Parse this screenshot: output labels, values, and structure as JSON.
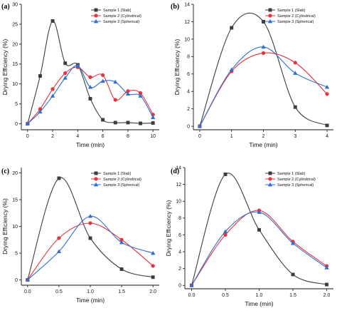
{
  "chart_data": [
    {
      "type": "line",
      "panel_label": "(a)",
      "xlabel": "Time (min)",
      "ylabel": "Drying Efficiency (%)",
      "xlim": [
        -0.5,
        10.5
      ],
      "ylim": [
        -1.5,
        30
      ],
      "xticks": [
        0,
        2,
        4,
        6,
        8,
        10
      ],
      "yticks": [
        0,
        5,
        10,
        15,
        20,
        25,
        30
      ],
      "legend_position": "top-right",
      "series": [
        {
          "name": "Sample 1 (Slab)",
          "color": "#3c3c3c",
          "marker": "square",
          "x": [
            0,
            1,
            2,
            3,
            4,
            5,
            6,
            7,
            8,
            9,
            10
          ],
          "y": [
            0,
            12,
            25.8,
            15.2,
            14.8,
            6.3,
            1,
            0.3,
            0.3,
            0.1,
            0.2
          ]
        },
        {
          "name": "Sample 2 (Cylindrical)",
          "color": "#e8323c",
          "marker": "circle",
          "x": [
            0,
            1,
            2,
            3,
            4,
            5,
            6,
            7,
            8,
            9,
            10
          ],
          "y": [
            0,
            3.7,
            8.7,
            12.7,
            14.2,
            11.7,
            12.2,
            6,
            8.2,
            7.7,
            2.3
          ]
        },
        {
          "name": "Sample 3 (Spherical)",
          "color": "#2e6fd1",
          "marker": "triangle",
          "x": [
            0,
            1,
            2,
            3,
            4,
            5,
            6,
            7,
            8,
            9,
            10
          ],
          "y": [
            0,
            3,
            7,
            11.5,
            14.6,
            9.2,
            10.7,
            10.5,
            7.5,
            7,
            1.6
          ]
        }
      ]
    },
    {
      "type": "line",
      "panel_label": "(b)",
      "xlabel": "Time (min)",
      "ylabel": "Drying Efficiency (%)",
      "xlim": [
        -0.2,
        4.2
      ],
      "ylim": [
        -0.4,
        14
      ],
      "xticks": [
        0,
        1,
        2,
        3,
        4
      ],
      "yticks": [
        0,
        2,
        4,
        6,
        8,
        10,
        12,
        14
      ],
      "legend_position": "top-right",
      "series": [
        {
          "name": "Sample 1 (Slab)",
          "color": "#3c3c3c",
          "marker": "square",
          "x": [
            0,
            1,
            2,
            3,
            4
          ],
          "y": [
            0,
            11.3,
            12,
            2.2,
            0.1
          ]
        },
        {
          "name": "Sample 2 (Cylindrical)",
          "color": "#e8323c",
          "marker": "circle",
          "x": [
            0,
            1,
            2,
            3,
            4
          ],
          "y": [
            0,
            6.3,
            8.4,
            7.3,
            3.7
          ]
        },
        {
          "name": "Sample 3 (Spherical)",
          "color": "#2e6fd1",
          "marker": "triangle",
          "x": [
            0,
            1,
            2,
            3,
            4
          ],
          "y": [
            0,
            6.5,
            9.1,
            6.1,
            4.5
          ]
        }
      ]
    },
    {
      "type": "line",
      "panel_label": "(c)",
      "xlabel": "Time (min)",
      "ylabel": "Drying Efficiency (%)",
      "xlim": [
        -0.1,
        2.1
      ],
      "ylim": [
        -1,
        21
      ],
      "xticks": [
        0.0,
        0.5,
        1.0,
        1.5,
        2.0
      ],
      "xtick_labels": [
        "0.0",
        "0.5",
        "1.0",
        "1.5",
        "2.0"
      ],
      "yticks": [
        0,
        5,
        10,
        15,
        20
      ],
      "legend_position": "top-right",
      "series": [
        {
          "name": "Sample 1 (Slab)",
          "color": "#3c3c3c",
          "marker": "square",
          "x": [
            0,
            0.5,
            1.0,
            1.5,
            2.0
          ],
          "y": [
            0,
            19,
            7.8,
            2,
            0.5
          ]
        },
        {
          "name": "Sample 2 (Cylindrical)",
          "color": "#e8323c",
          "marker": "circle",
          "x": [
            0,
            0.5,
            1.0,
            1.5,
            2.0
          ],
          "y": [
            0,
            7.8,
            10.6,
            7.5,
            2.6
          ]
        },
        {
          "name": "Sample 3 (Spherical)",
          "color": "#2e6fd1",
          "marker": "triangle",
          "x": [
            0,
            0.5,
            1.0,
            1.5,
            2.0
          ],
          "y": [
            0,
            5.3,
            11.9,
            7,
            5
          ]
        }
      ]
    },
    {
      "type": "line",
      "panel_label": "(d)",
      "xlabel": "Time (min)",
      "ylabel": "Drying Efficiency (%)",
      "xlim": [
        -0.1,
        2.1
      ],
      "ylim": [
        -0.4,
        14
      ],
      "xticks": [
        0.0,
        0.5,
        1.0,
        1.5,
        2.0
      ],
      "xtick_labels": [
        "0.0",
        "0.5",
        "1.0",
        "1.5",
        "2.0"
      ],
      "yticks": [
        0,
        2,
        4,
        6,
        8,
        10,
        12,
        14
      ],
      "legend_position": "top-right",
      "series": [
        {
          "name": "Sample 1 (Slab)",
          "color": "#3c3c3c",
          "marker": "square",
          "x": [
            0,
            0.5,
            1.0,
            1.5,
            2.0
          ],
          "y": [
            0,
            13.2,
            6.6,
            1.3,
            0.1
          ]
        },
        {
          "name": "Sample 2 (Cylindrical)",
          "color": "#e8323c",
          "marker": "circle",
          "x": [
            0,
            0.5,
            1.0,
            1.5,
            2.0
          ],
          "y": [
            0,
            6,
            8.9,
            5.2,
            2.3
          ]
        },
        {
          "name": "Sample 3 (Spherical)",
          "color": "#2e6fd1",
          "marker": "triangle",
          "x": [
            0,
            0.5,
            1.0,
            1.5,
            2.0
          ],
          "y": [
            0,
            6.4,
            8.7,
            5,
            2.1
          ]
        }
      ]
    }
  ]
}
